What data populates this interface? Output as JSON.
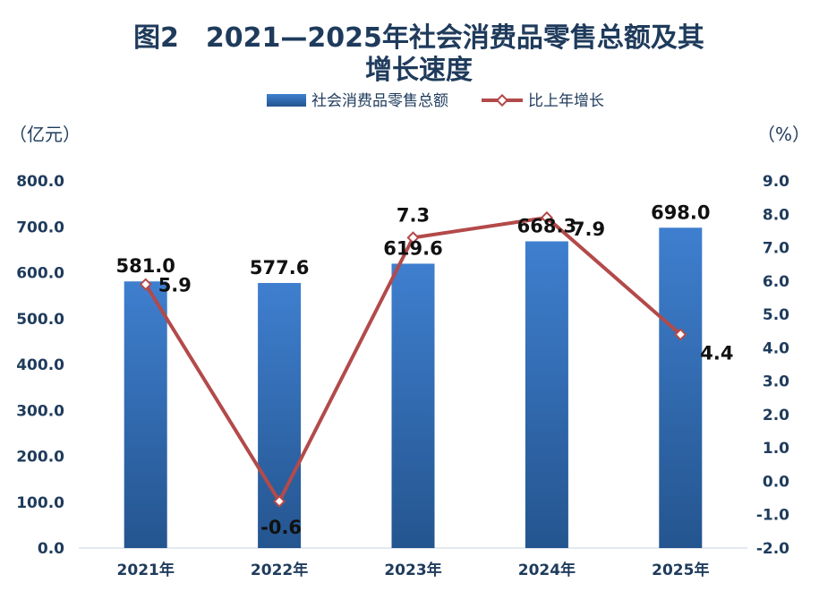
{
  "chart_data": {
    "type": "bar",
    "title_line1": "图2　2021—2025年社会消费品零售总额及其",
    "title_line2": "增长速度",
    "categories": [
      "2021年",
      "2022年",
      "2023年",
      "2024年",
      "2025年"
    ],
    "series": [
      {
        "name": "社会消费品零售总额",
        "type": "bar",
        "axis": "left",
        "values": [
          581.0,
          577.6,
          619.6,
          668.3,
          698.0
        ]
      },
      {
        "name": "比上年增长",
        "type": "line",
        "axis": "right",
        "values": [
          5.9,
          -0.6,
          7.3,
          7.9,
          4.4
        ]
      }
    ],
    "left_axis": {
      "unit": "（亿元）",
      "ylim": [
        0,
        800
      ],
      "step": 100,
      "decimals": 1
    },
    "right_axis": {
      "unit": "（%）",
      "ylim": [
        -2,
        9
      ],
      "step": 1,
      "decimals": 1
    },
    "colors": {
      "bar_top": "#3f7fcf",
      "bar_bottom": "#24558f",
      "line": "#b34a4a",
      "marker_fill": "#ffffff",
      "text": "#1f3b5c"
    }
  }
}
